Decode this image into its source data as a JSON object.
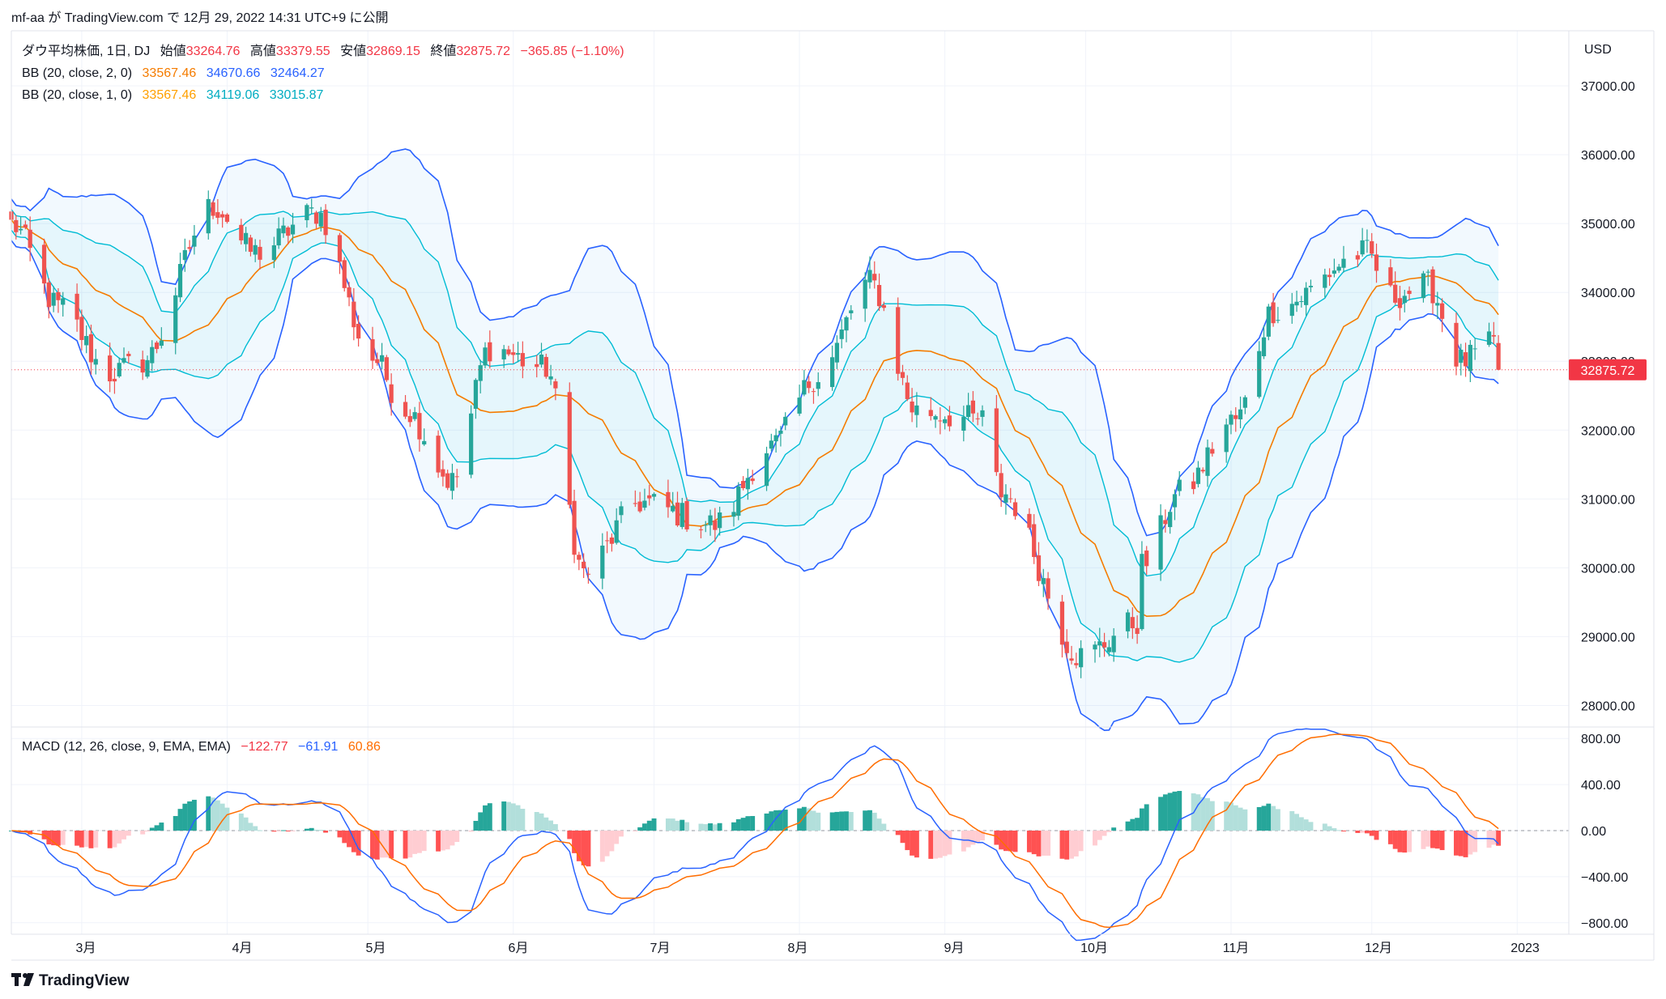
{
  "header": {
    "snapshot_text": "mf-aa が TradingView.com で 12月 29, 2022 14:31 UTC+9 に公開"
  },
  "legend": {
    "symbol": "ダウ平均株価, 1日, DJ",
    "open_label": "始値",
    "open": "33264.76",
    "high_label": "高値",
    "high": "33379.55",
    "low_label": "安値",
    "low": "32869.15",
    "close_label": "終値",
    "close": "32875.72",
    "change": "−365.85 (−1.10%)",
    "bb2_label": "BB (20, close, 2, 0)",
    "bb2_basis": "33567.46",
    "bb2_upper": "34670.66",
    "bb2_lower": "32464.27",
    "bb1_label": "BB (20, close, 1, 0)",
    "bb1_basis": "33567.46",
    "bb1_upper": "34119.06",
    "bb1_lower": "33015.87",
    "macd_label": "MACD (12, 26, close, 9, EMA, EMA)",
    "macd_hist": "−122.77",
    "macd_line": "−61.91",
    "macd_signal": "60.86"
  },
  "price_axis": {
    "currency": "USD",
    "ticks": [
      "37000.00",
      "36000.00",
      "35000.00",
      "34000.00",
      "33000.00",
      "32000.00",
      "31000.00",
      "30000.00",
      "29000.00",
      "28000.00"
    ],
    "last_price_label": "32875.72"
  },
  "macd_axis": {
    "ticks": [
      "800.00",
      "400.00",
      "0.00",
      "−400.00",
      "−800.00"
    ]
  },
  "time_axis": {
    "ticks": [
      "3月",
      "4月",
      "5月",
      "6月",
      "7月",
      "8月",
      "9月",
      "10月",
      "11月",
      "12月",
      "2023"
    ]
  },
  "footer": {
    "brand": "TradingView"
  },
  "colors": {
    "up": "#26a69a",
    "down": "#ef5350",
    "bb2": "#2962ff",
    "bb1": "#00bcd4",
    "basis": "#f57c00",
    "macd": "#2962ff",
    "signal": "#ff6d00",
    "hist_up_strong": "#26a69a",
    "hist_up_weak": "#b2dfdb",
    "hist_down_strong": "#ff5252",
    "hist_down_weak": "#ffcdd2",
    "last_price": "#f23645"
  },
  "chart_data": [
    {
      "type": "line",
      "title": "ダウ平均株価, 1日, DJ",
      "ylabel": "USD",
      "ylim": [
        27700,
        37800
      ],
      "x_range": [
        "2022-02-14",
        "2023-01-12"
      ],
      "grid": true,
      "anchors": [
        [
          "2022-02-14",
          34990
        ],
        [
          "2022-02-24",
          33800
        ],
        [
          "2022-03-07",
          32820
        ],
        [
          "2022-03-14",
          33000
        ],
        [
          "2022-03-29",
          35250
        ],
        [
          "2022-04-07",
          34580
        ],
        [
          "2022-04-20",
          35160
        ],
        [
          "2022-05-02",
          33050
        ],
        [
          "2022-05-09",
          32300
        ],
        [
          "2022-05-19",
          31250
        ],
        [
          "2022-05-27",
          33200
        ],
        [
          "2022-06-08",
          32900
        ],
        [
          "2022-06-16",
          29930
        ],
        [
          "2022-06-28",
          30950
        ],
        [
          "2022-07-14",
          30630
        ],
        [
          "2022-07-26",
          31760
        ],
        [
          "2022-08-05",
          32800
        ],
        [
          "2022-08-16",
          34150
        ],
        [
          "2022-08-26",
          32280
        ],
        [
          "2022-09-09",
          32150
        ],
        [
          "2022-09-13",
          31100
        ],
        [
          "2022-09-30",
          28720
        ],
        [
          "2022-10-12",
          29210
        ],
        [
          "2022-10-13",
          30040
        ],
        [
          "2022-10-21",
          31080
        ],
        [
          "2022-11-02",
          32150
        ],
        [
          "2022-11-10",
          33750
        ],
        [
          "2022-11-30",
          34580
        ],
        [
          "2022-12-05",
          33940
        ],
        [
          "2022-12-13",
          34100
        ],
        [
          "2022-12-20",
          33000
        ],
        [
          "2022-12-27",
          33240
        ],
        [
          "2022-12-28",
          32875.72
        ]
      ],
      "series": [
        {
          "name": "BB (20, close, 2, 0)",
          "values": [
            "34670.66",
            "32464.27"
          ]
        },
        {
          "name": "BB (20, close, 1, 0)",
          "values": [
            "34119.06",
            "33015.87"
          ]
        }
      ]
    },
    {
      "type": "bar",
      "title": "MACD (12, 26, close, 9, EMA, EMA)",
      "ylim": [
        -900,
        900
      ],
      "series": [
        {
          "name": "MACD (12, 26, close, 9, EMA, EMA)",
          "values": [
            -122.77,
            -61.91,
            60.86
          ]
        }
      ]
    }
  ]
}
